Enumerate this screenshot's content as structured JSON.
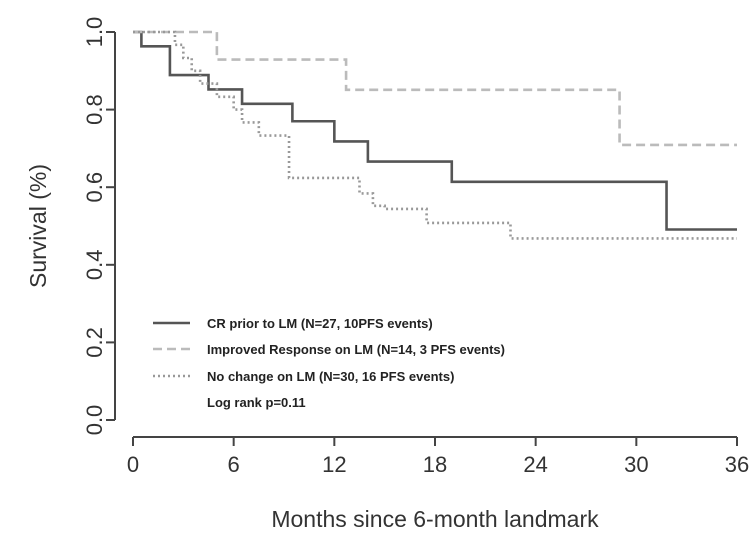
{
  "chart_data": {
    "type": "line",
    "title": "",
    "xlabel": "Months since 6-month landmark",
    "ylabel": "Survival (%)",
    "xlim": [
      0,
      36
    ],
    "ylim": [
      0,
      1
    ],
    "x_ticks": [
      "0",
      "6",
      "12",
      "18",
      "24",
      "30",
      "36"
    ],
    "y_ticks": [
      "0.0",
      "0.2",
      "0.4",
      "0.6",
      "0.8",
      "1.0"
    ],
    "grid": false,
    "legend_position": "bottom-left",
    "legend_note": "Log rank p=0.11",
    "series": [
      {
        "name": "CR prior to LM (N=27, 10PFS events)",
        "style": "solid",
        "color": "#555555",
        "x": [
          0,
          0.5,
          2.2,
          4.5,
          6.5,
          9.5,
          12,
          14,
          19,
          31.8,
          36
        ],
        "y": [
          1.0,
          0.963,
          0.889,
          0.852,
          0.815,
          0.77,
          0.718,
          0.666,
          0.614,
          0.491,
          0.491
        ]
      },
      {
        "name": "Improved Response on LM (N=14, 3 PFS events)",
        "style": "dashed",
        "color": "#bbbbbb",
        "x": [
          0,
          5,
          12.7,
          29,
          36
        ],
        "y": [
          1.0,
          0.929,
          0.851,
          0.709,
          0.709
        ]
      },
      {
        "name": "No change on LM (N=30, 16 PFS events)",
        "style": "dotted",
        "color": "#999999",
        "x": [
          0,
          2.5,
          3,
          3.5,
          4,
          5,
          6,
          6.5,
          7.5,
          9.3,
          13.5,
          14.3,
          15,
          17.5,
          22.5,
          36
        ],
        "y": [
          1.0,
          0.967,
          0.933,
          0.9,
          0.867,
          0.833,
          0.8,
          0.767,
          0.733,
          0.624,
          0.584,
          0.552,
          0.544,
          0.508,
          0.468,
          0.468
        ]
      }
    ]
  }
}
